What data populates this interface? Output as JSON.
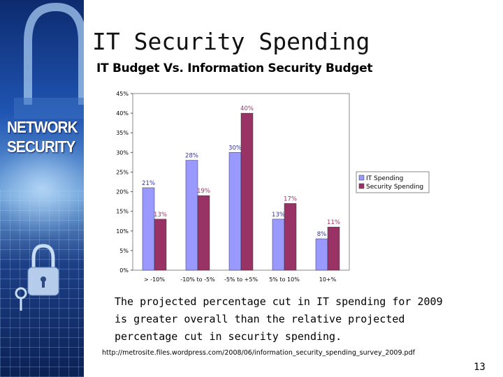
{
  "banner": {
    "text_line1": "NETWORK",
    "text_line2": "SECURITY"
  },
  "slide": {
    "title": "IT Security Spending",
    "subtitle": "IT Budget Vs. Information Security Budget",
    "caption": "The projected percentage cut in IT spending for 2009 is greater overall than the relative projected percentage cut in security spending.",
    "source": "http://metrosite.files.wordpress.com/2008/06/information_security_spending_survey_2009.pdf",
    "page_number": "13"
  },
  "colors": {
    "it_spending": "#9999ff",
    "security_spending": "#993366",
    "label_it": "#333399",
    "label_sec": "#993366"
  },
  "chart_data": {
    "type": "bar",
    "categories": [
      "> -10%",
      "-10% to -5%",
      "-5% to +5%",
      "5% to 10%",
      "10+%"
    ],
    "series": [
      {
        "name": "IT Spending",
        "values": [
          21,
          28,
          30,
          13,
          8
        ],
        "labels": [
          "21%",
          "28%",
          "30%",
          "13%",
          "8%"
        ]
      },
      {
        "name": "Security Spending",
        "values": [
          13,
          19,
          40,
          17,
          11
        ],
        "labels": [
          "13%",
          "19%",
          "40%",
          "17%",
          "11%"
        ]
      }
    ],
    "yticks": [
      "0%",
      "5%",
      "10%",
      "15%",
      "20%",
      "25%",
      "30%",
      "35%",
      "40%",
      "45%"
    ],
    "ylim": [
      0,
      45
    ],
    "legend": "right",
    "grid": false
  }
}
